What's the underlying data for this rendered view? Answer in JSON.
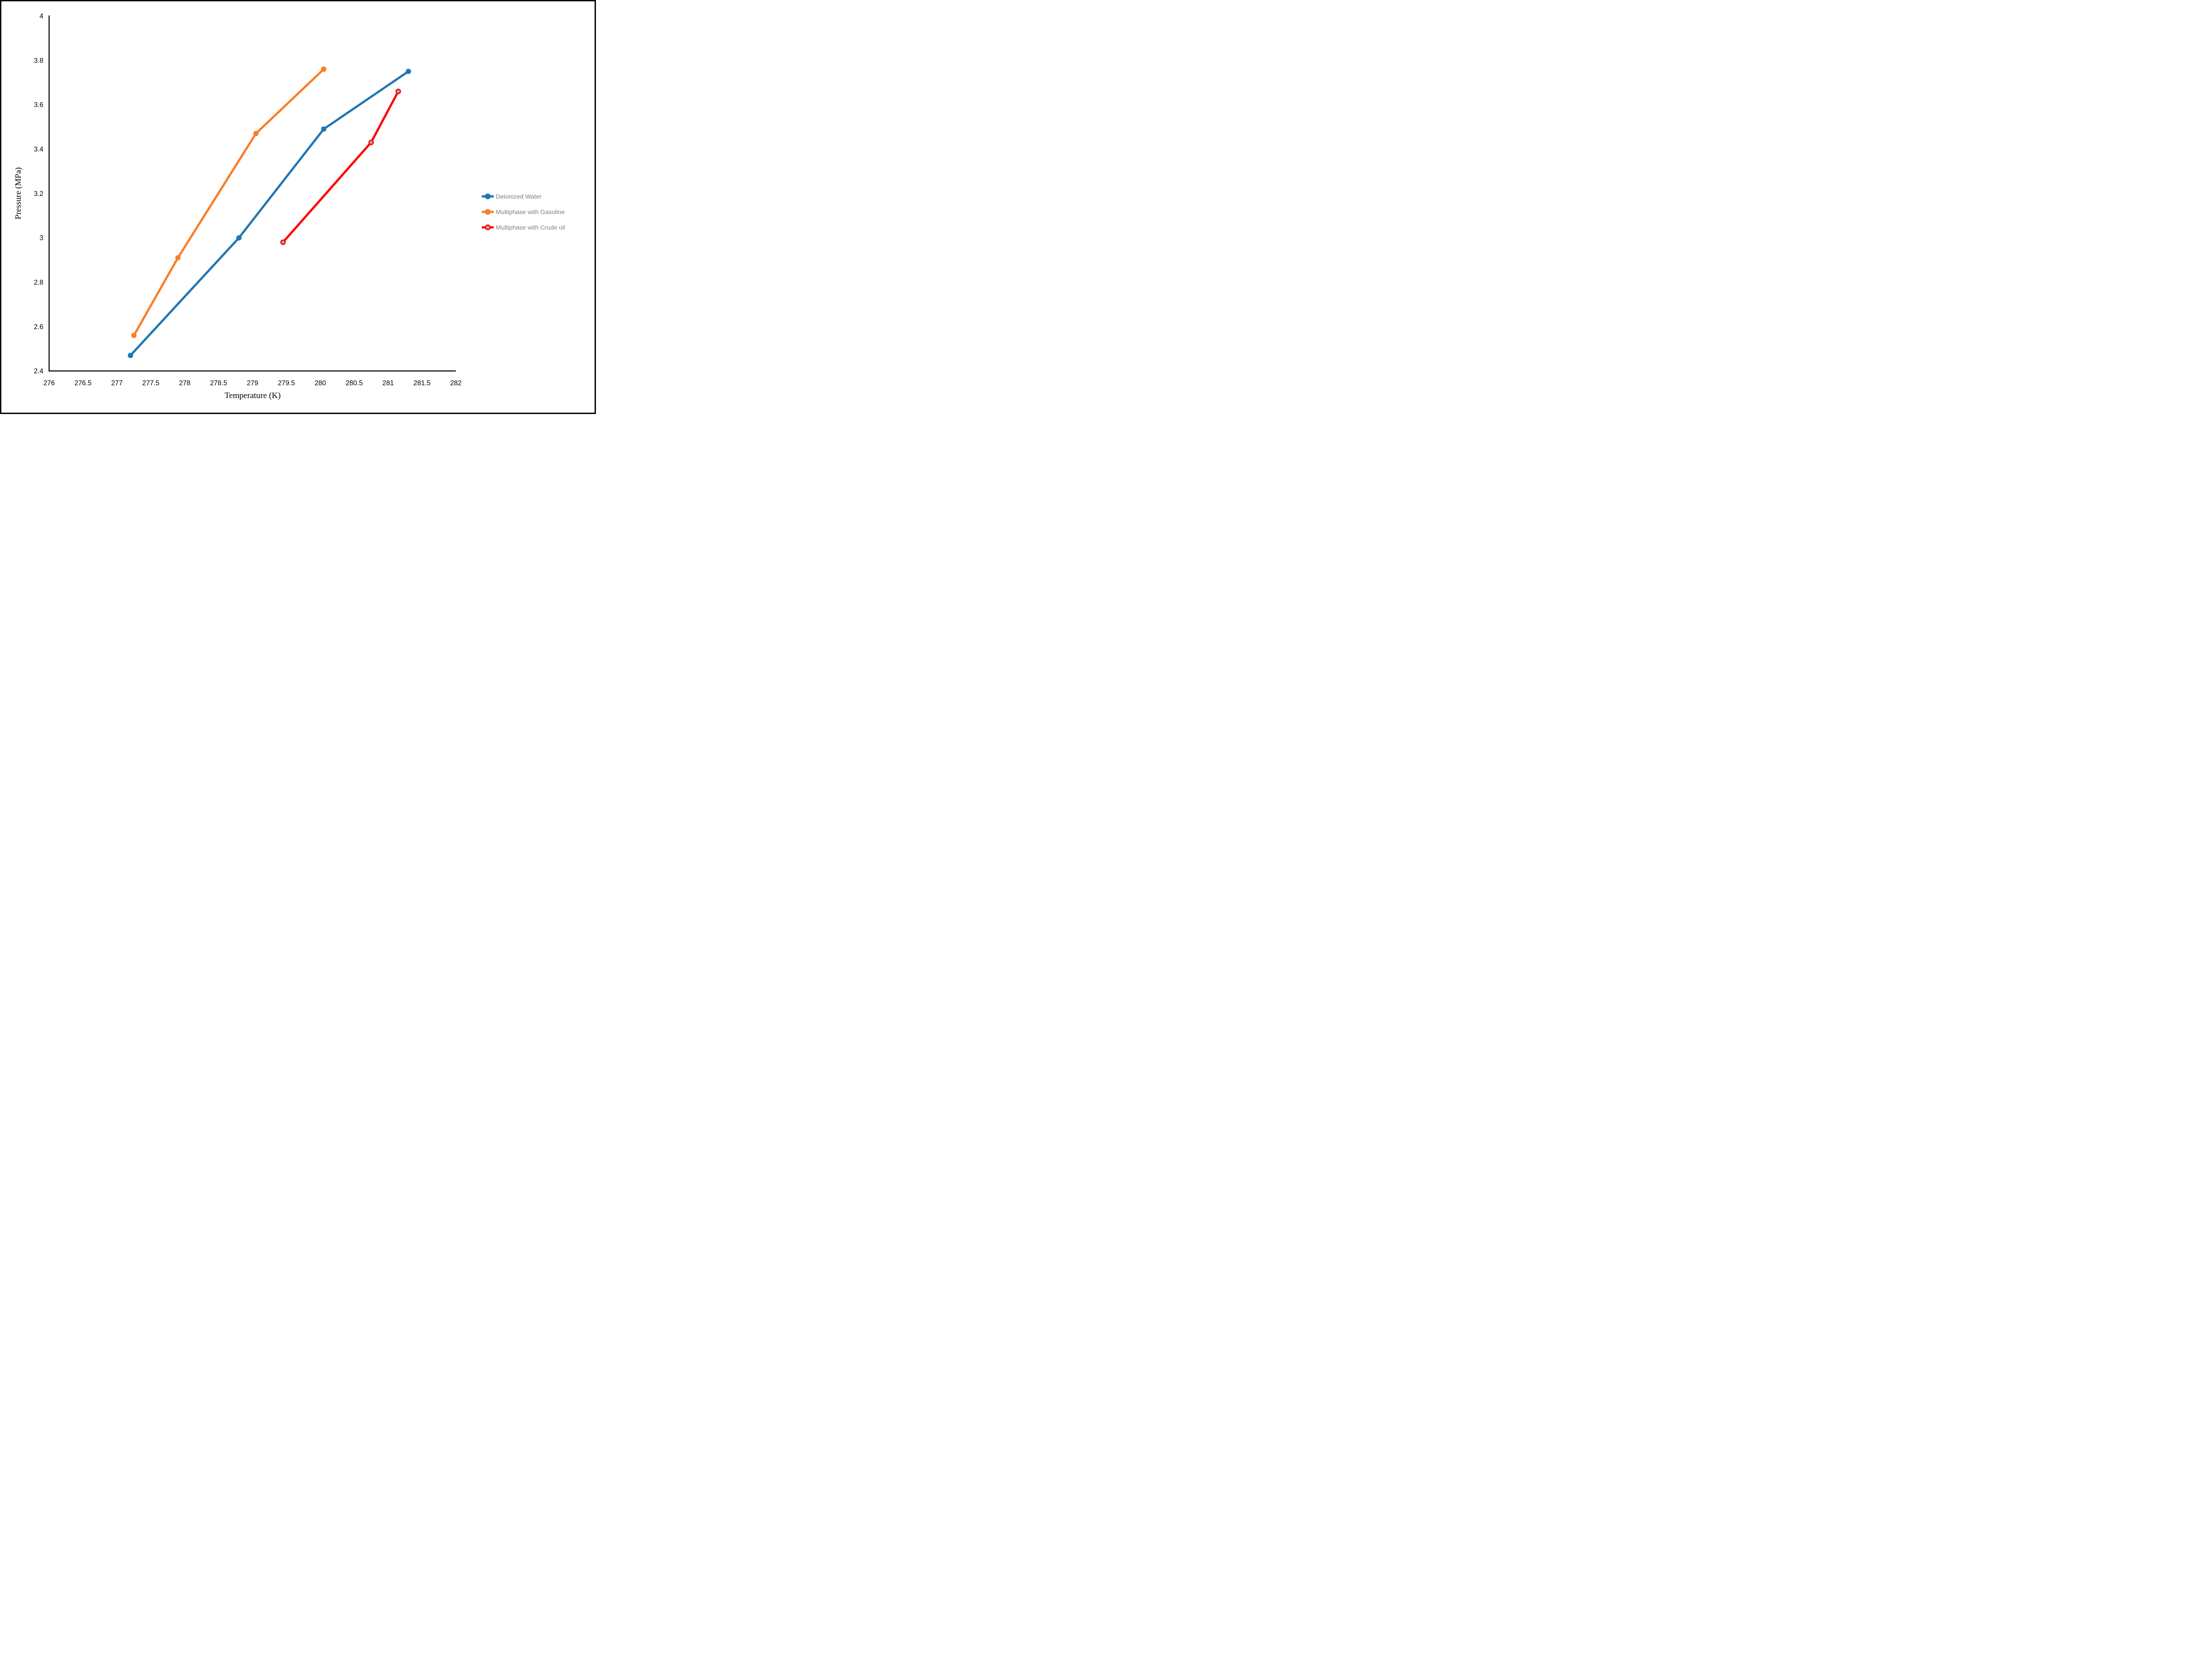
{
  "frame": {
    "background": "#FFFFFF",
    "border_color": "#000000"
  },
  "chart_data": {
    "type": "line",
    "title": "",
    "xlabel": "Temperature (K)",
    "ylabel": "Pressure (MPa)",
    "xlim": [
      276,
      282
    ],
    "ylim": [
      2.4,
      4
    ],
    "xticks": [
      "276",
      "276.5",
      "277",
      "277.5",
      "278",
      "278.5",
      "279",
      "279.5",
      "280",
      "280.5",
      "281",
      "281.5",
      "282"
    ],
    "yticks": [
      "2.4",
      "2.6",
      "2.8",
      "3",
      "3.2",
      "3.4",
      "3.6",
      "3.8",
      "4"
    ],
    "grid": false,
    "legend_position": "right-middle",
    "axis_color": "#000000",
    "tick_label_color": "#000000",
    "legend_text_color": "#7F7F7F",
    "series": [
      {
        "name": "Deionized Water",
        "color": "#1F77B4",
        "marker": {
          "fill": "#1F77B4",
          "stroke": "#1F77B4"
        },
        "points": [
          [
            277.2,
            2.47
          ],
          [
            278.8,
            3.0
          ],
          [
            280.05,
            3.49
          ],
          [
            281.3,
            3.75
          ]
        ]
      },
      {
        "name": "Multiphase with Gasoline",
        "color": "#FA7E28",
        "marker": {
          "fill": "#FA7E28",
          "stroke": "#FA7E28"
        },
        "points": [
          [
            277.25,
            2.56
          ],
          [
            277.9,
            2.91
          ],
          [
            279.05,
            3.47
          ],
          [
            280.05,
            3.76
          ]
        ]
      },
      {
        "name": "Multiphase with Crude oil",
        "color": "#FF0000",
        "marker": {
          "fill": "#A8A8A8",
          "stroke": "#FF0000"
        },
        "points": [
          [
            279.45,
            2.98
          ],
          [
            280.75,
            3.43
          ],
          [
            281.15,
            3.66
          ]
        ]
      }
    ]
  }
}
